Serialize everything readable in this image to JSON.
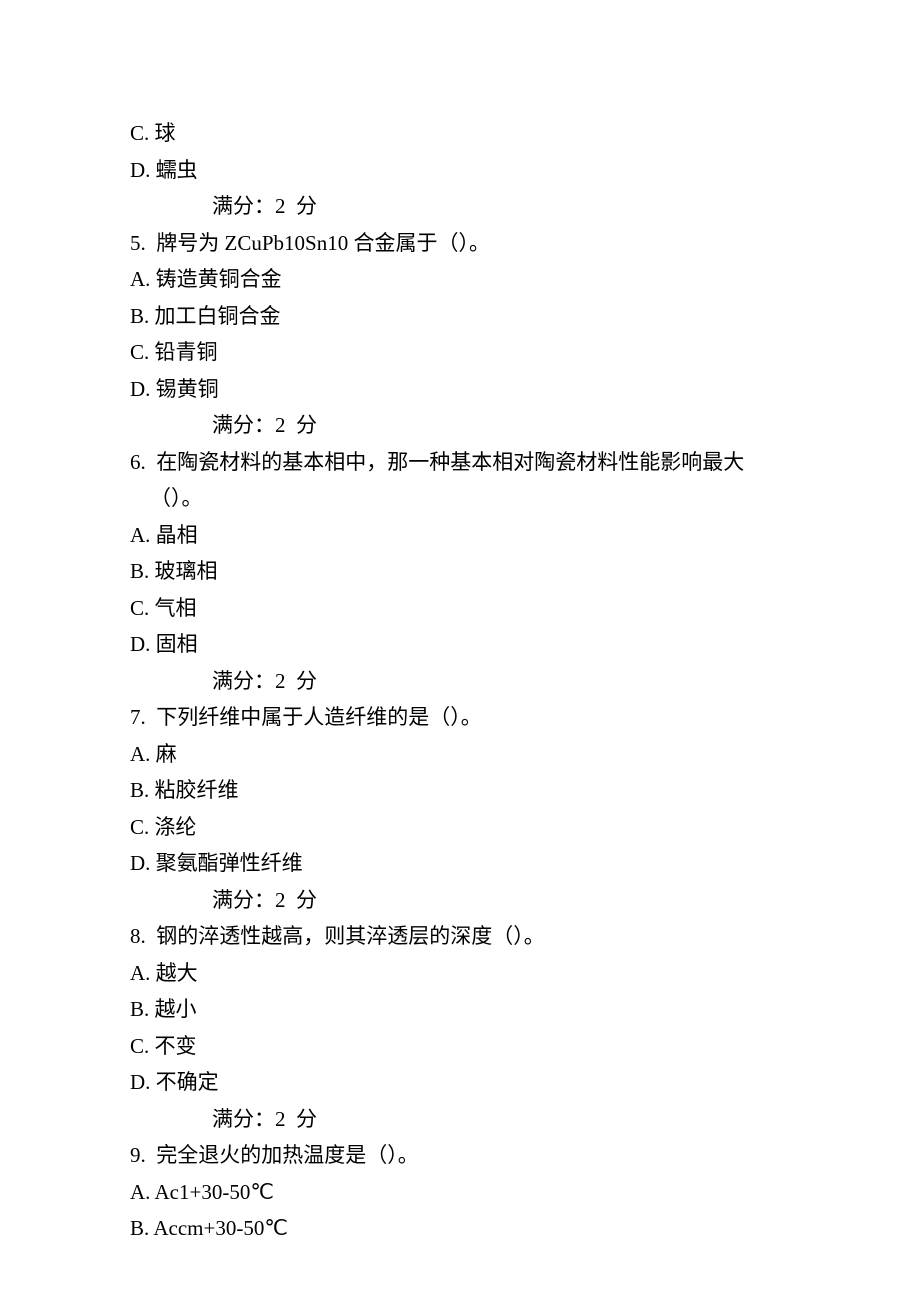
{
  "lines": [
    {
      "text": "C. 球",
      "class": "option"
    },
    {
      "text": "D. 蠕虫",
      "class": "option"
    },
    {
      "text": "满分：2  分",
      "class": "score"
    },
    {
      "text": "5.  牌号为 ZCuPb10Sn10 合金属于（）。",
      "class": "question"
    },
    {
      "text": "A. 铸造黄铜合金",
      "class": "option"
    },
    {
      "text": "B. 加工白铜合金",
      "class": "option"
    },
    {
      "text": "C. 铅青铜",
      "class": "option"
    },
    {
      "text": "D. 锡黄铜",
      "class": "option"
    },
    {
      "text": "满分：2  分",
      "class": "score"
    },
    {
      "text": "6.  在陶瓷材料的基本相中，那一种基本相对陶瓷材料性能影响最大",
      "class": "question"
    },
    {
      "text": "（）。",
      "class": "wrap-indent"
    },
    {
      "text": "A. 晶相",
      "class": "option"
    },
    {
      "text": "B. 玻璃相",
      "class": "option"
    },
    {
      "text": "C. 气相",
      "class": "option"
    },
    {
      "text": "D. 固相",
      "class": "option"
    },
    {
      "text": "满分：2  分",
      "class": "score"
    },
    {
      "text": "7.  下列纤维中属于人造纤维的是（）。",
      "class": "question"
    },
    {
      "text": "A. 麻",
      "class": "option"
    },
    {
      "text": "B. 粘胶纤维",
      "class": "option"
    },
    {
      "text": "C. 涤纶",
      "class": "option"
    },
    {
      "text": "D. 聚氨酯弹性纤维",
      "class": "option"
    },
    {
      "text": "满分：2  分",
      "class": "score"
    },
    {
      "text": "8.  钢的淬透性越高，则其淬透层的深度（）。",
      "class": "question"
    },
    {
      "text": "A. 越大",
      "class": "option"
    },
    {
      "text": "B. 越小",
      "class": "option"
    },
    {
      "text": "C. 不变",
      "class": "option"
    },
    {
      "text": "D. 不确定",
      "class": "option"
    },
    {
      "text": "满分：2  分",
      "class": "score"
    },
    {
      "text": "9.  完全退火的加热温度是（）。",
      "class": "question"
    },
    {
      "text": "A. Ac1+30-50℃",
      "class": "option"
    },
    {
      "text": "B. Accm+30-50℃",
      "class": "option"
    }
  ]
}
